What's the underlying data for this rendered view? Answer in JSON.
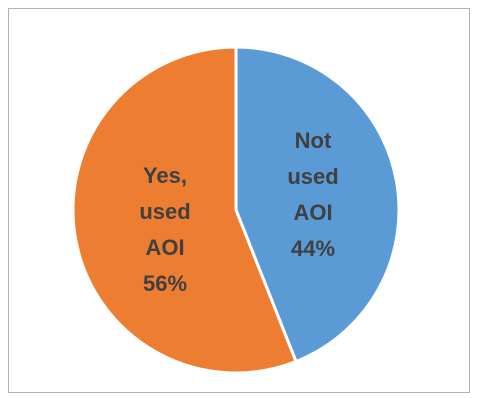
{
  "chart_data": {
    "type": "pie",
    "title": "",
    "slices": [
      {
        "label_lines": [
          "Not",
          "used",
          "AOI",
          "44%"
        ],
        "value": 44,
        "color": "#5b9bd5"
      },
      {
        "label_lines": [
          "Yes,",
          "used",
          "AOI",
          "56%"
        ],
        "value": 56,
        "color": "#ed7d31"
      }
    ],
    "legend": "none",
    "start_angle": "12 o'clock",
    "direction": "clockwise"
  }
}
